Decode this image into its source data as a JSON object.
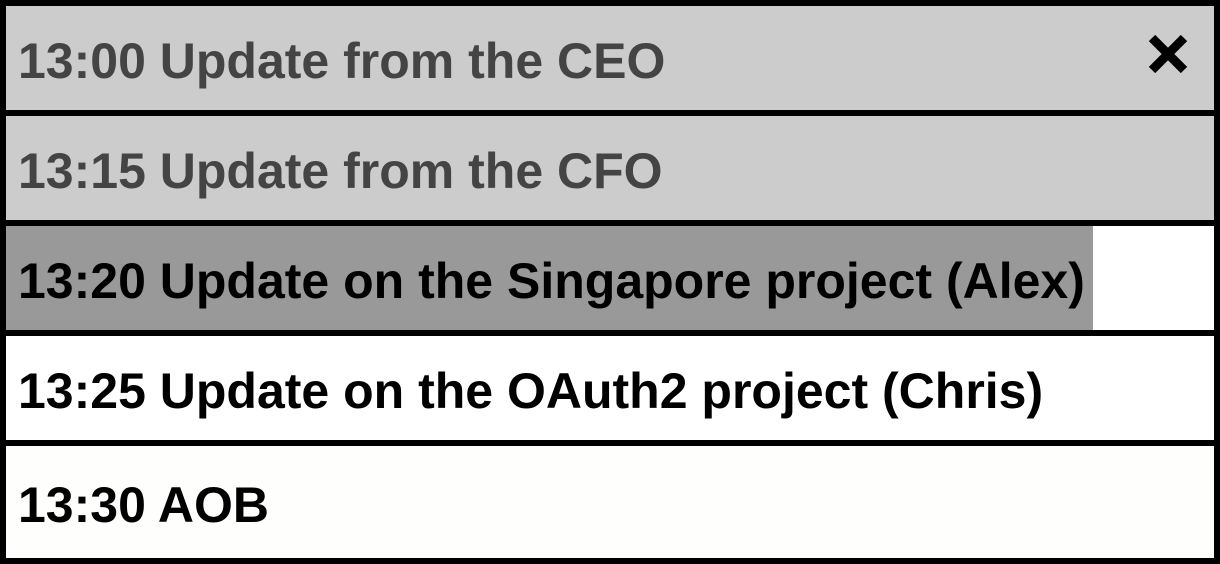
{
  "agenda": {
    "items": [
      {
        "time": "13:00",
        "title": "Update from the CEO",
        "label": "13:00 Update from the CEO",
        "state": "past"
      },
      {
        "time": "13:15",
        "title": "Update from the CFO",
        "label": "13:15 Update from the CFO",
        "state": "past"
      },
      {
        "time": "13:20",
        "title": "Update on the Singapore project (Alex)",
        "label": "13:20 Update on the Singapore project (Alex)",
        "state": "current",
        "progress": 0.9
      },
      {
        "time": "13:25",
        "title": "Update on the OAuth2 project (Chris)",
        "label": "13:25 Update on the OAuth2 project (Chris)",
        "state": "future"
      },
      {
        "time": "13:30",
        "title": "AOB",
        "label": "13:30 AOB",
        "state": "future"
      }
    ],
    "close_icon": "close-icon"
  },
  "colors": {
    "past_background": "#cccccc",
    "past_text": "#444444",
    "progress_fill": "#999999",
    "future_background": "#ffffff",
    "border": "#000000"
  }
}
